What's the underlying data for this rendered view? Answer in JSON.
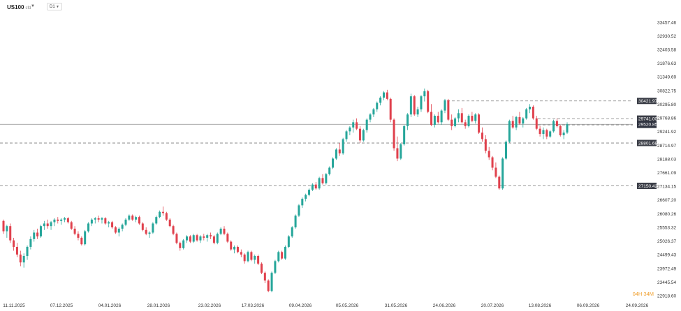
{
  "header": {
    "symbol": "US100",
    "symbol_suffix": "cfd",
    "timeframe": "D1"
  },
  "countdown": "04H 34M",
  "colors": {
    "up": "#26a69a",
    "down": "#e0414d",
    "tag_bg": "#3b3e47",
    "price_tag_bg": "#2f3340"
  },
  "chart_data": {
    "type": "candlestick",
    "symbol": "US100",
    "timeframe": "D1",
    "y_range": [
      22918.6,
      33720
    ],
    "y_ticks": [
      "33457.46",
      "32930.52",
      "32403.58",
      "31876.63",
      "31349.69",
      "30822.75",
      "30295.80",
      "29768.86",
      "29241.92",
      "28714.97",
      "28188.03",
      "27661.09",
      "27134.15",
      "26607.20",
      "26080.26",
      "25553.32",
      "25026.37",
      "24499.43",
      "23972.49",
      "23445.54",
      "22918.60"
    ],
    "x_ticks": [
      "11.11.2025",
      "07.12.2025",
      "04.01.2026",
      "28.01.2026",
      "23.02.2026",
      "17.03.2026",
      "09.04.2026",
      "05.05.2026",
      "31.05.2026",
      "24.06.2026",
      "20.07.2026",
      "13.08.2026",
      "06.09.2026",
      "24.09.2026"
    ],
    "horizontal_levels": [
      {
        "value": 30421.97,
        "label": "30421.97",
        "style": "dashed"
      },
      {
        "value": 29741.0,
        "label": "29741.00",
        "style": "dashed"
      },
      {
        "value": 29497.47,
        "label": "29497.47",
        "style": "dashed"
      },
      {
        "value": 28801.68,
        "label": "28801.68",
        "style": "dashed"
      },
      {
        "value": 27150.42,
        "label": "27150.42",
        "style": "dashed"
      }
    ],
    "current_price": {
      "value": 29520.85,
      "label": "29520.85"
    },
    "candles": [
      [
        25800,
        25850,
        25300,
        25400
      ],
      [
        25400,
        25650,
        25150,
        25600
      ],
      [
        25600,
        25700,
        24950,
        25050
      ],
      [
        25050,
        25150,
        24650,
        24800
      ],
      [
        24800,
        24950,
        24400,
        24500
      ],
      [
        24500,
        24650,
        24050,
        24200
      ],
      [
        24200,
        24550,
        24000,
        24450
      ],
      [
        24450,
        24850,
        24300,
        24800
      ],
      [
        24800,
        25200,
        24700,
        25100
      ],
      [
        25100,
        25450,
        25000,
        25350
      ],
      [
        25350,
        25500,
        25100,
        25200
      ],
      [
        25200,
        25650,
        25150,
        25600
      ],
      [
        25600,
        25800,
        25450,
        25700
      ],
      [
        25700,
        25850,
        25500,
        25600
      ],
      [
        25600,
        25800,
        25450,
        25750
      ],
      [
        25750,
        25900,
        25600,
        25850
      ],
      [
        25850,
        25950,
        25700,
        25800
      ],
      [
        25800,
        25900,
        25650,
        25850
      ],
      [
        25850,
        25950,
        25750,
        25900
      ],
      [
        25900,
        25950,
        25700,
        25750
      ],
      [
        25750,
        25800,
        25450,
        25500
      ],
      [
        25500,
        25600,
        25250,
        25300
      ],
      [
        25300,
        25400,
        25050,
        25150
      ],
      [
        25150,
        25200,
        24850,
        24900
      ],
      [
        24900,
        25450,
        24850,
        25400
      ],
      [
        25400,
        25750,
        25350,
        25700
      ],
      [
        25700,
        25900,
        25600,
        25850
      ],
      [
        25850,
        25950,
        25700,
        25900
      ],
      [
        25900,
        26000,
        25750,
        25850
      ],
      [
        25850,
        25950,
        25700,
        25900
      ],
      [
        25900,
        25950,
        25650,
        25700
      ],
      [
        25700,
        25800,
        25550,
        25750
      ],
      [
        25750,
        25800,
        25500,
        25550
      ],
      [
        25550,
        25600,
        25300,
        25350
      ],
      [
        25350,
        25550,
        25200,
        25500
      ],
      [
        25500,
        25700,
        25400,
        25650
      ],
      [
        25650,
        25900,
        25600,
        25850
      ],
      [
        25850,
        26050,
        25800,
        26000
      ],
      [
        26000,
        26050,
        25800,
        25850
      ],
      [
        25850,
        26000,
        25750,
        25950
      ],
      [
        25950,
        26000,
        25650,
        25700
      ],
      [
        25700,
        25750,
        25400,
        25450
      ],
      [
        25450,
        25550,
        25250,
        25300
      ],
      [
        25300,
        25400,
        25150,
        25350
      ],
      [
        25350,
        25750,
        25300,
        25700
      ],
      [
        25700,
        26000,
        25650,
        25950
      ],
      [
        25950,
        26200,
        25900,
        26150
      ],
      [
        26150,
        26350,
        26000,
        26100
      ],
      [
        26100,
        26150,
        25800,
        25850
      ],
      [
        25850,
        25900,
        25550,
        25600
      ],
      [
        25600,
        25650,
        25250,
        25300
      ],
      [
        25300,
        25350,
        24900,
        24950
      ],
      [
        24950,
        25000,
        24650,
        24750
      ],
      [
        24750,
        25100,
        24700,
        25050
      ],
      [
        25050,
        25250,
        24950,
        25200
      ],
      [
        25200,
        25250,
        24950,
        25000
      ],
      [
        25000,
        25300,
        24950,
        25250
      ],
      [
        25250,
        25300,
        25000,
        25050
      ],
      [
        25050,
        25250,
        24950,
        25200
      ],
      [
        25200,
        25300,
        25050,
        25150
      ],
      [
        25150,
        25300,
        25000,
        25250
      ],
      [
        25250,
        25350,
        25100,
        25200
      ],
      [
        25200,
        25250,
        24900,
        24950
      ],
      [
        24950,
        25350,
        24900,
        25300
      ],
      [
        25300,
        25550,
        25250,
        25500
      ],
      [
        25500,
        25600,
        25250,
        25300
      ],
      [
        25300,
        25350,
        24950,
        25000
      ],
      [
        25000,
        25050,
        24650,
        24700
      ],
      [
        24700,
        24850,
        24550,
        24800
      ],
      [
        24800,
        24850,
        24550,
        24600
      ],
      [
        24600,
        24700,
        24400,
        24500
      ],
      [
        24500,
        24550,
        24150,
        24250
      ],
      [
        24250,
        24650,
        24200,
        24600
      ],
      [
        24600,
        24650,
        24250,
        24300
      ],
      [
        24300,
        24500,
        24150,
        24450
      ],
      [
        24450,
        24500,
        24100,
        24150
      ],
      [
        24150,
        24200,
        23750,
        23800
      ],
      [
        23800,
        23850,
        23400,
        23500
      ],
      [
        23500,
        23550,
        23050,
        23100
      ],
      [
        23100,
        23850,
        23050,
        23800
      ],
      [
        23800,
        24300,
        23750,
        24250
      ],
      [
        24250,
        24650,
        24200,
        24600
      ],
      [
        24600,
        24650,
        24300,
        24350
      ],
      [
        24350,
        24850,
        24300,
        24800
      ],
      [
        24800,
        25250,
        24750,
        25200
      ],
      [
        25200,
        25600,
        25150,
        25550
      ],
      [
        25550,
        26050,
        25500,
        26000
      ],
      [
        26000,
        26450,
        25950,
        26400
      ],
      [
        26400,
        26700,
        26300,
        26650
      ],
      [
        26650,
        26850,
        26550,
        26800
      ],
      [
        26800,
        27050,
        26750,
        27000
      ],
      [
        27000,
        27250,
        26950,
        27200
      ],
      [
        27200,
        27300,
        27000,
        27050
      ],
      [
        27050,
        27500,
        27000,
        27450
      ],
      [
        27450,
        27600,
        27200,
        27250
      ],
      [
        27250,
        27650,
        27200,
        27600
      ],
      [
        27600,
        27900,
        27550,
        27850
      ],
      [
        27850,
        28250,
        27800,
        28200
      ],
      [
        28200,
        28600,
        28150,
        28550
      ],
      [
        28550,
        28800,
        28300,
        28400
      ],
      [
        28400,
        29000,
        28350,
        28950
      ],
      [
        28950,
        29300,
        28850,
        29250
      ],
      [
        29250,
        29450,
        29100,
        29400
      ],
      [
        29400,
        29700,
        29200,
        29600
      ],
      [
        29600,
        29750,
        29300,
        29350
      ],
      [
        29350,
        29450,
        28800,
        28900
      ],
      [
        28900,
        29350,
        28850,
        29300
      ],
      [
        29300,
        29750,
        29200,
        29700
      ],
      [
        29700,
        29950,
        29600,
        29900
      ],
      [
        29900,
        30150,
        29800,
        30100
      ],
      [
        30100,
        30400,
        30000,
        30350
      ],
      [
        30350,
        30600,
        30250,
        30550
      ],
      [
        30550,
        30800,
        30450,
        30750
      ],
      [
        30750,
        30850,
        30450,
        30500
      ],
      [
        30500,
        30550,
        29600,
        29700
      ],
      [
        29700,
        29750,
        28500,
        28600
      ],
      [
        28600,
        29050,
        28100,
        28200
      ],
      [
        28200,
        28800,
        28150,
        28750
      ],
      [
        28750,
        29500,
        28700,
        29450
      ],
      [
        29450,
        29950,
        29300,
        29900
      ],
      [
        29900,
        30700,
        29800,
        30600
      ],
      [
        30600,
        30650,
        29850,
        29900
      ],
      [
        29900,
        30200,
        29800,
        30100
      ],
      [
        30100,
        30650,
        30000,
        30600
      ],
      [
        30600,
        30900,
        30400,
        30800
      ],
      [
        30800,
        30850,
        29950,
        30000
      ],
      [
        30000,
        30300,
        29450,
        29500
      ],
      [
        29500,
        29900,
        29400,
        29850
      ],
      [
        29850,
        30000,
        29550,
        29600
      ],
      [
        29600,
        30100,
        29500,
        30050
      ],
      [
        30050,
        30500,
        29950,
        30450
      ],
      [
        30450,
        30500,
        29650,
        29700
      ],
      [
        29700,
        29900,
        29300,
        29450
      ],
      [
        29450,
        29800,
        29400,
        29750
      ],
      [
        29750,
        30100,
        29600,
        29950
      ],
      [
        29950,
        30150,
        29550,
        29600
      ],
      [
        29600,
        29700,
        29350,
        29450
      ],
      [
        29450,
        29900,
        29400,
        29850
      ],
      [
        29850,
        30000,
        29600,
        29650
      ],
      [
        29650,
        29950,
        29550,
        29900
      ],
      [
        29900,
        29950,
        29150,
        29200
      ],
      [
        29200,
        29400,
        28850,
        28950
      ],
      [
        28950,
        29100,
        28400,
        28500
      ],
      [
        28500,
        28650,
        28150,
        28250
      ],
      [
        28250,
        28300,
        27750,
        27850
      ],
      [
        27850,
        28050,
        27450,
        27500
      ],
      [
        27500,
        27550,
        27000,
        27050
      ],
      [
        27050,
        28250,
        27000,
        28200
      ],
      [
        28200,
        28900,
        28150,
        28850
      ],
      [
        28850,
        29700,
        28800,
        29650
      ],
      [
        29650,
        29850,
        29350,
        29400
      ],
      [
        29400,
        29850,
        29300,
        29800
      ],
      [
        29800,
        30000,
        29500,
        29550
      ],
      [
        29550,
        29800,
        29400,
        29750
      ],
      [
        29750,
        30150,
        29700,
        30100
      ],
      [
        30100,
        30300,
        29950,
        30200
      ],
      [
        30200,
        30250,
        29700,
        29750
      ],
      [
        29750,
        29850,
        29300,
        29350
      ],
      [
        29350,
        29450,
        29050,
        29150
      ],
      [
        29150,
        29400,
        28950,
        29300
      ],
      [
        29300,
        29350,
        28950,
        29050
      ],
      [
        29050,
        29300,
        29000,
        29250
      ],
      [
        29250,
        29700,
        29200,
        29650
      ],
      [
        29650,
        29750,
        29400,
        29450
      ],
      [
        29450,
        29500,
        29050,
        29100
      ],
      [
        29100,
        29300,
        28950,
        29200
      ],
      [
        29200,
        29600,
        29150,
        29520
      ]
    ]
  }
}
